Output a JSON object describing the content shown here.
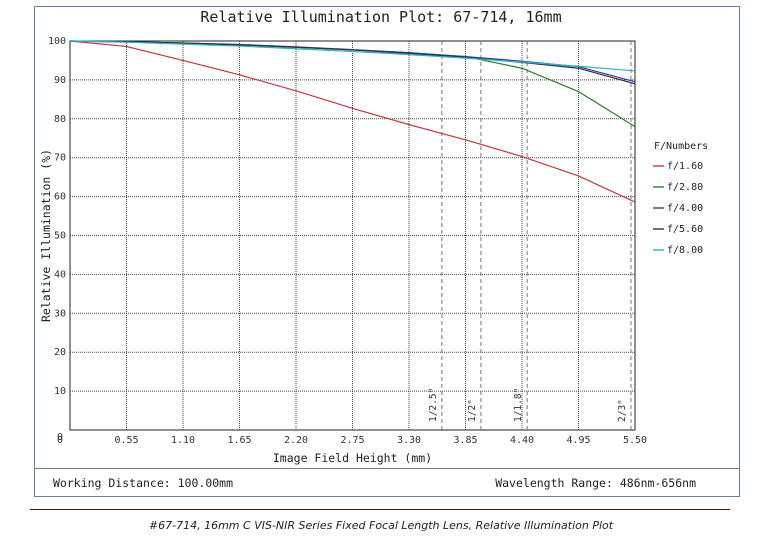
{
  "chart_data": {
    "type": "line",
    "title": "Relative Illumination Plot: 67-714, 16mm",
    "xlabel": "Image Field Height (mm)",
    "ylabel": "Relative Illumination (%)",
    "xlim": [
      0,
      5.5
    ],
    "ylim": [
      0,
      100
    ],
    "x_ticks": [
      "0",
      "0.55",
      "1.10",
      "1.65",
      "2.20",
      "2.75",
      "3.30",
      "3.85",
      "4.40",
      "4.95",
      "5.50"
    ],
    "y_ticks": [
      "10",
      "20",
      "30",
      "40",
      "50",
      "60",
      "70",
      "80",
      "90",
      "100"
    ],
    "y_zero_label": "0",
    "grid": true,
    "legend_title": "F/Numbers",
    "legend_placement": "right",
    "series": [
      {
        "name": "f/1.60",
        "color": "#c0383c",
        "x": [
          0,
          0.55,
          1.1,
          1.65,
          2.2,
          2.75,
          3.3,
          3.85,
          4.4,
          4.95,
          5.5
        ],
        "values": [
          100,
          98.6,
          95.0,
          91.3,
          87.2,
          82.7,
          78.5,
          74.6,
          70.3,
          65.3,
          58.6
        ]
      },
      {
        "name": "f/2.80",
        "color": "#2e7d32",
        "x": [
          0,
          0.55,
          1.1,
          1.65,
          2.2,
          2.75,
          3.3,
          3.85,
          4.4,
          4.95,
          5.5
        ],
        "values": [
          100,
          99.7,
          99.4,
          99.0,
          98.4,
          97.7,
          97.0,
          96.0,
          93.0,
          87.0,
          78.0
        ]
      },
      {
        "name": "f/4.00",
        "color": "#2f3aa5",
        "x": [
          0,
          0.55,
          1.1,
          1.65,
          2.2,
          2.75,
          3.3,
          3.85,
          4.4,
          4.95,
          5.5
        ],
        "values": [
          100,
          99.8,
          99.5,
          99.1,
          98.5,
          97.8,
          97.0,
          96.0,
          94.8,
          93.4,
          89.5
        ]
      },
      {
        "name": "f/5.60",
        "color": "#333333",
        "x": [
          0,
          0.55,
          1.1,
          1.65,
          2.2,
          2.75,
          3.3,
          3.85,
          4.4,
          4.95,
          5.5
        ],
        "values": [
          100,
          99.8,
          99.5,
          99.0,
          98.4,
          97.7,
          96.8,
          95.8,
          94.5,
          93.0,
          89.0
        ]
      },
      {
        "name": "f/8.00",
        "color": "#29b6c8",
        "x": [
          0,
          0.55,
          1.1,
          1.65,
          2.2,
          2.75,
          3.3,
          3.85,
          4.4,
          4.95,
          5.5
        ],
        "values": [
          100,
          99.7,
          99.2,
          98.7,
          98.0,
          97.3,
          96.5,
          95.6,
          94.6,
          93.5,
          92.3
        ]
      }
    ],
    "sensor_markers": [
      {
        "label": "1/2.5\"",
        "x": 3.62
      },
      {
        "label": "1/2\"",
        "x": 4.0
      },
      {
        "label": "1/1.8\"",
        "x": 4.45
      },
      {
        "label": "2/3\"",
        "x": 5.5
      }
    ]
  },
  "footer": {
    "working_distance": "Working Distance: 100.00mm",
    "wavelength_range": "Wavelength Range: 486nm-656nm"
  },
  "caption": "#67-714, 16mm C VIS-NIR Series Fixed Focal Length Lens, Relative Illumination Plot"
}
